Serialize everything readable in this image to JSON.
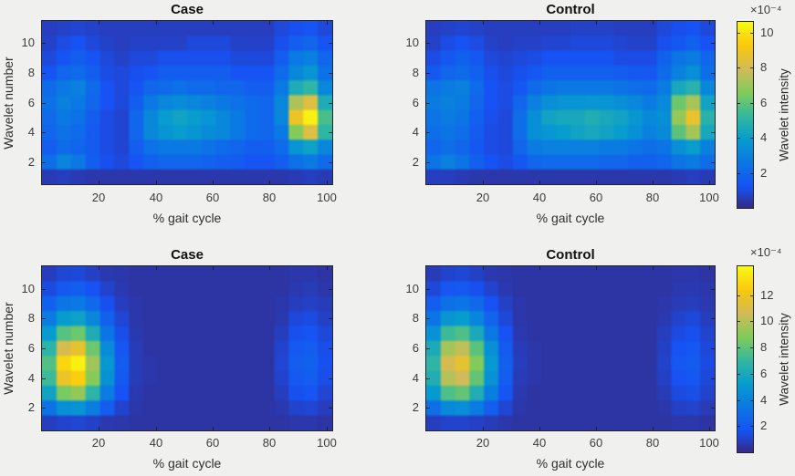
{
  "figure": {
    "background_color": "#f0f0ee",
    "axes_box_color": "#262626",
    "tick_label_color": "#3c3c3c",
    "title_color": "#111111"
  },
  "colormap": {
    "name": "parula",
    "stops": [
      [
        0.0,
        "#352a87"
      ],
      [
        0.111,
        "#1752f4"
      ],
      [
        0.238,
        "#0b77e4"
      ],
      [
        0.365,
        "#079ccf"
      ],
      [
        0.492,
        "#33b8a1"
      ],
      [
        0.619,
        "#81cc59"
      ],
      [
        0.746,
        "#d1bb59"
      ],
      [
        0.873,
        "#f9c80e"
      ],
      [
        1.0,
        "#f9fb14"
      ]
    ]
  },
  "chart_data": [
    {
      "id": "heatmap-top-case",
      "type": "heatmap",
      "title": "Case",
      "xlabel": "% gait cycle",
      "ylabel": "Wavelet number",
      "x_ticks": [
        20,
        40,
        60,
        80,
        100
      ],
      "y_ticks": [
        2,
        4,
        6,
        8,
        10
      ],
      "xlim": [
        0,
        102
      ],
      "ylim": [
        0.5,
        11.5
      ],
      "grid": "off",
      "value_units": "1e-4",
      "color_range": [
        0,
        10.6
      ],
      "rows_order": "wavelet number 1 (bottom row first) to 11 (top)",
      "cols_order": "% gait cycle bin centers 2.5 to 97.5, step 5",
      "values": [
        [
          0.5,
          0.6,
          0.5,
          0.4,
          0.4,
          0.4,
          0.4,
          0.4,
          0.4,
          0.4,
          0.4,
          0.4,
          0.4,
          0.4,
          0.4,
          0.4,
          0.4,
          0.5,
          0.6,
          0.5
        ],
        [
          2.2,
          3.0,
          2.6,
          1.6,
          1.1,
          0.9,
          1.3,
          1.7,
          1.9,
          1.9,
          1.9,
          1.8,
          1.6,
          1.5,
          1.3,
          1.3,
          1.6,
          2.3,
          2.6,
          2.1
        ],
        [
          1.6,
          2.1,
          1.9,
          1.5,
          1.0,
          0.8,
          1.6,
          2.3,
          2.6,
          2.6,
          2.6,
          2.3,
          2.1,
          1.9,
          1.6,
          1.6,
          2.1,
          3.6,
          4.1,
          3.1
        ],
        [
          1.9,
          2.3,
          2.1,
          1.5,
          1.0,
          0.8,
          1.9,
          3.1,
          3.6,
          3.9,
          3.6,
          3.3,
          3.1,
          2.6,
          2.1,
          1.9,
          2.6,
          6.6,
          8.3,
          5.1
        ],
        [
          2.1,
          2.6,
          2.3,
          1.6,
          1.0,
          0.8,
          1.9,
          3.1,
          3.9,
          4.2,
          3.9,
          3.6,
          3.1,
          2.6,
          2.1,
          1.9,
          3.1,
          8.8,
          10.3,
          5.6
        ],
        [
          2.3,
          2.9,
          2.6,
          1.9,
          1.2,
          0.9,
          1.6,
          2.6,
          3.1,
          3.3,
          3.1,
          2.9,
          2.6,
          2.3,
          2.1,
          1.9,
          3.1,
          7.3,
          8.3,
          4.6
        ],
        [
          2.1,
          2.6,
          2.9,
          2.1,
          1.2,
          0.9,
          1.3,
          1.9,
          2.1,
          2.3,
          2.1,
          2.1,
          1.9,
          1.9,
          1.6,
          1.6,
          2.6,
          4.6,
          5.1,
          3.1
        ],
        [
          1.3,
          1.9,
          2.1,
          1.6,
          1.0,
          0.9,
          1.1,
          1.3,
          1.6,
          1.6,
          1.6,
          1.6,
          1.6,
          1.3,
          1.3,
          1.3,
          2.1,
          3.1,
          3.6,
          2.3
        ],
        [
          0.9,
          1.3,
          1.6,
          1.3,
          0.9,
          0.7,
          0.9,
          0.9,
          1.1,
          1.1,
          1.1,
          1.1,
          1.1,
          0.9,
          0.9,
          0.9,
          1.6,
          2.6,
          2.9,
          1.9
        ],
        [
          0.7,
          1.0,
          1.2,
          0.9,
          0.7,
          0.6,
          0.7,
          0.7,
          0.7,
          0.7,
          0.9,
          0.9,
          0.9,
          0.7,
          0.7,
          0.7,
          1.1,
          1.6,
          1.9,
          1.3
        ],
        [
          0.6,
          0.7,
          0.8,
          0.7,
          0.6,
          0.6,
          0.6,
          0.6,
          0.6,
          0.6,
          0.6,
          0.6,
          0.6,
          0.6,
          0.6,
          0.6,
          0.9,
          1.1,
          1.3,
          0.9
        ]
      ]
    },
    {
      "id": "heatmap-top-control",
      "type": "heatmap",
      "title": "Control",
      "xlabel": "% gait cycle",
      "ylabel": "Wavelet number",
      "x_ticks": [
        20,
        40,
        60,
        80,
        100
      ],
      "y_ticks": [
        2,
        4,
        6,
        8,
        10
      ],
      "xlim": [
        0,
        102
      ],
      "ylim": [
        0.5,
        11.5
      ],
      "grid": "off",
      "value_units": "1e-4",
      "color_range": [
        0,
        10.6
      ],
      "rows_order": "wavelet number 1 (bottom row first) to 11 (top)",
      "cols_order": "% gait cycle bin centers 2.5 to 97.5, step 5",
      "values": [
        [
          0.6,
          0.6,
          0.5,
          0.4,
          0.4,
          0.4,
          0.4,
          0.4,
          0.4,
          0.4,
          0.4,
          0.4,
          0.4,
          0.4,
          0.4,
          0.4,
          0.4,
          0.5,
          0.6,
          0.5
        ],
        [
          2.4,
          2.9,
          2.4,
          1.7,
          1.2,
          1.0,
          1.4,
          1.9,
          2.1,
          2.1,
          2.1,
          2.1,
          1.9,
          1.9,
          1.7,
          1.7,
          1.9,
          2.4,
          2.7,
          2.2
        ],
        [
          1.9,
          2.2,
          1.9,
          1.4,
          1.0,
          0.9,
          1.9,
          2.7,
          2.9,
          2.9,
          2.9,
          2.9,
          2.7,
          2.7,
          2.4,
          2.2,
          2.4,
          3.4,
          3.9,
          2.9
        ],
        [
          2.2,
          2.4,
          2.2,
          1.5,
          1.0,
          0.9,
          2.2,
          3.4,
          3.7,
          3.9,
          4.2,
          4.4,
          4.2,
          3.9,
          3.4,
          2.9,
          3.2,
          5.9,
          7.2,
          4.4
        ],
        [
          2.4,
          2.7,
          2.4,
          1.7,
          1.1,
          0.9,
          2.2,
          3.4,
          4.2,
          4.4,
          4.4,
          4.7,
          4.4,
          4.2,
          3.7,
          3.2,
          3.4,
          6.9,
          8.7,
          4.9
        ],
        [
          2.7,
          2.9,
          2.7,
          1.9,
          1.2,
          1.0,
          1.9,
          2.9,
          3.4,
          3.6,
          3.6,
          3.7,
          3.6,
          3.4,
          3.1,
          2.7,
          3.2,
          6.2,
          7.2,
          4.2
        ],
        [
          2.4,
          2.7,
          2.9,
          2.1,
          1.2,
          1.0,
          1.4,
          2.1,
          2.4,
          2.6,
          2.6,
          2.6,
          2.6,
          2.4,
          2.2,
          2.1,
          2.7,
          4.4,
          4.9,
          3.1
        ],
        [
          1.4,
          1.9,
          2.1,
          1.7,
          1.1,
          0.9,
          1.1,
          1.4,
          1.7,
          1.7,
          1.7,
          1.7,
          1.7,
          1.6,
          1.4,
          1.4,
          2.1,
          2.9,
          3.4,
          2.2
        ],
        [
          1.0,
          1.4,
          1.7,
          1.4,
          0.9,
          0.8,
          0.9,
          1.0,
          1.2,
          1.2,
          1.2,
          1.2,
          1.2,
          1.0,
          1.0,
          1.0,
          1.7,
          2.4,
          2.7,
          1.9
        ],
        [
          0.7,
          1.0,
          1.2,
          1.0,
          0.7,
          0.6,
          0.7,
          0.7,
          0.8,
          0.8,
          0.9,
          0.9,
          0.9,
          0.8,
          0.7,
          0.7,
          1.1,
          1.4,
          1.7,
          1.2
        ],
        [
          0.6,
          0.7,
          0.8,
          0.7,
          0.6,
          0.6,
          0.6,
          0.6,
          0.6,
          0.6,
          0.7,
          0.7,
          0.7,
          0.6,
          0.6,
          0.6,
          0.9,
          1.1,
          1.2,
          0.9
        ]
      ]
    },
    {
      "id": "heatmap-bottom-case",
      "type": "heatmap",
      "title": "Case",
      "xlabel": "% gait cycle",
      "ylabel": "Wavelet number",
      "x_ticks": [
        20,
        40,
        60,
        80,
        100
      ],
      "y_ticks": [
        2,
        4,
        6,
        8,
        10
      ],
      "xlim": [
        0,
        102
      ],
      "ylim": [
        0.5,
        11.5
      ],
      "grid": "off",
      "value_units": "1e-4",
      "color_range": [
        0,
        14.2
      ],
      "rows_order": "wavelet number 1 (bottom row first) to 11 (top)",
      "cols_order": "% gait cycle bin centers 2.5 to 97.5, step 5",
      "values": [
        [
          0.8,
          1.0,
          1.1,
          0.9,
          0.6,
          0.5,
          0.4,
          0.4,
          0.4,
          0.4,
          0.4,
          0.4,
          0.4,
          0.4,
          0.4,
          0.4,
          0.4,
          0.5,
          0.5,
          0.4
        ],
        [
          3.2,
          4.6,
          4.8,
          3.7,
          2.1,
          1.0,
          0.5,
          0.4,
          0.4,
          0.4,
          0.4,
          0.4,
          0.4,
          0.4,
          0.4,
          0.4,
          0.6,
          1.0,
          1.1,
          0.8
        ],
        [
          5.6,
          8.6,
          9.2,
          6.7,
          3.6,
          1.6,
          0.6,
          0.4,
          0.4,
          0.4,
          0.4,
          0.4,
          0.4,
          0.4,
          0.4,
          0.4,
          0.8,
          1.5,
          1.7,
          1.1
        ],
        [
          7.2,
          11.8,
          12.6,
          8.9,
          4.7,
          1.9,
          0.7,
          0.5,
          0.4,
          0.4,
          0.4,
          0.4,
          0.4,
          0.4,
          0.4,
          0.4,
          1.0,
          1.9,
          2.1,
          1.4
        ],
        [
          7.7,
          12.9,
          13.8,
          9.5,
          5.0,
          2.0,
          0.7,
          0.5,
          0.4,
          0.4,
          0.4,
          0.4,
          0.4,
          0.4,
          0.4,
          0.4,
          1.1,
          2.1,
          2.3,
          1.5
        ],
        [
          6.7,
          10.8,
          11.6,
          8.3,
          4.4,
          1.8,
          0.7,
          0.4,
          0.4,
          0.4,
          0.4,
          0.4,
          0.4,
          0.4,
          0.4,
          0.4,
          1.0,
          1.9,
          2.1,
          1.4
        ],
        [
          5.2,
          7.8,
          8.3,
          6.2,
          3.3,
          1.4,
          0.6,
          0.4,
          0.4,
          0.4,
          0.4,
          0.4,
          0.4,
          0.4,
          0.4,
          0.4,
          0.8,
          1.5,
          1.7,
          1.2
        ],
        [
          3.6,
          5.2,
          5.5,
          4.2,
          2.3,
          1.1,
          0.5,
          0.4,
          0.4,
          0.4,
          0.4,
          0.4,
          0.4,
          0.4,
          0.4,
          0.4,
          0.6,
          1.2,
          1.3,
          0.9
        ],
        [
          2.3,
          3.3,
          3.5,
          2.7,
          1.5,
          0.8,
          0.5,
          0.4,
          0.4,
          0.4,
          0.4,
          0.4,
          0.4,
          0.4,
          0.4,
          0.4,
          0.5,
          0.8,
          0.9,
          0.7
        ],
        [
          1.3,
          1.9,
          2.1,
          1.6,
          1.0,
          0.6,
          0.4,
          0.4,
          0.4,
          0.4,
          0.4,
          0.4,
          0.4,
          0.4,
          0.4,
          0.4,
          0.4,
          0.6,
          0.7,
          0.5
        ],
        [
          0.8,
          1.1,
          1.2,
          0.9,
          0.6,
          0.5,
          0.4,
          0.4,
          0.4,
          0.4,
          0.4,
          0.4,
          0.4,
          0.4,
          0.4,
          0.4,
          0.4,
          0.5,
          0.5,
          0.4
        ]
      ]
    },
    {
      "id": "heatmap-bottom-control",
      "type": "heatmap",
      "title": "Control",
      "xlabel": "% gait cycle",
      "ylabel": "Wavelet number",
      "x_ticks": [
        20,
        40,
        60,
        80,
        100
      ],
      "y_ticks": [
        2,
        4,
        6,
        8,
        10
      ],
      "xlim": [
        0,
        102
      ],
      "ylim": [
        0.5,
        11.5
      ],
      "grid": "off",
      "value_units": "1e-4",
      "color_range": [
        0,
        14.2
      ],
      "rows_order": "wavelet number 1 (bottom row first) to 11 (top)",
      "cols_order": "% gait cycle bin centers 2.5 to 97.5, step 5",
      "values": [
        [
          0.8,
          1.0,
          1.0,
          0.9,
          0.7,
          0.5,
          0.4,
          0.4,
          0.4,
          0.4,
          0.4,
          0.4,
          0.4,
          0.4,
          0.4,
          0.4,
          0.4,
          0.5,
          0.5,
          0.4
        ],
        [
          3.0,
          4.3,
          4.5,
          3.6,
          2.2,
          1.1,
          0.5,
          0.4,
          0.4,
          0.4,
          0.4,
          0.4,
          0.4,
          0.4,
          0.4,
          0.4,
          0.5,
          0.9,
          1.0,
          0.7
        ],
        [
          5.1,
          7.6,
          8.1,
          6.3,
          3.7,
          1.7,
          0.6,
          0.4,
          0.4,
          0.4,
          0.4,
          0.4,
          0.4,
          0.4,
          0.4,
          0.4,
          0.7,
          1.3,
          1.4,
          1.0
        ],
        [
          6.3,
          10.0,
          10.6,
          8.1,
          4.7,
          2.1,
          0.7,
          0.5,
          0.4,
          0.4,
          0.4,
          0.4,
          0.4,
          0.4,
          0.4,
          0.4,
          0.9,
          1.6,
          1.8,
          1.2
        ],
        [
          6.8,
          10.8,
          11.5,
          8.8,
          5.1,
          2.2,
          0.8,
          0.5,
          0.4,
          0.4,
          0.4,
          0.4,
          0.4,
          0.4,
          0.4,
          0.4,
          1.0,
          1.8,
          2.0,
          1.3
        ],
        [
          6.1,
          9.6,
          10.2,
          7.9,
          4.6,
          2.0,
          0.7,
          0.5,
          0.4,
          0.4,
          0.4,
          0.4,
          0.4,
          0.4,
          0.4,
          0.4,
          0.9,
          1.6,
          1.8,
          1.2
        ],
        [
          4.7,
          7.2,
          7.6,
          6.0,
          3.5,
          1.6,
          0.6,
          0.4,
          0.4,
          0.4,
          0.4,
          0.4,
          0.4,
          0.4,
          0.4,
          0.4,
          0.8,
          1.3,
          1.5,
          1.0
        ],
        [
          3.3,
          4.9,
          5.2,
          4.1,
          2.5,
          1.2,
          0.5,
          0.4,
          0.4,
          0.4,
          0.4,
          0.4,
          0.4,
          0.4,
          0.4,
          0.4,
          0.6,
          1.0,
          1.2,
          0.8
        ],
        [
          2.1,
          3.1,
          3.3,
          2.7,
          1.6,
          0.9,
          0.5,
          0.4,
          0.4,
          0.4,
          0.4,
          0.4,
          0.4,
          0.4,
          0.4,
          0.4,
          0.5,
          0.7,
          0.8,
          0.6
        ],
        [
          1.2,
          1.8,
          1.9,
          1.5,
          1.0,
          0.6,
          0.4,
          0.4,
          0.4,
          0.4,
          0.4,
          0.4,
          0.4,
          0.4,
          0.4,
          0.4,
          0.4,
          0.6,
          0.6,
          0.5
        ],
        [
          0.7,
          1.0,
          1.1,
          0.9,
          0.6,
          0.5,
          0.4,
          0.4,
          0.4,
          0.4,
          0.4,
          0.4,
          0.4,
          0.4,
          0.4,
          0.4,
          0.4,
          0.5,
          0.5,
          0.4
        ]
      ]
    }
  ],
  "colorbars": [
    {
      "id": "top",
      "exponent_label": "×10⁻⁴",
      "label": "Wavelet intensity",
      "ticks": [
        2,
        4,
        6,
        8,
        10
      ],
      "range": [
        0,
        10.6
      ]
    },
    {
      "id": "bottom",
      "exponent_label": "×10⁻⁴",
      "label": "Wavelet intensity",
      "ticks": [
        2,
        4,
        6,
        8,
        10,
        12
      ],
      "range": [
        0,
        14.2
      ]
    }
  ]
}
